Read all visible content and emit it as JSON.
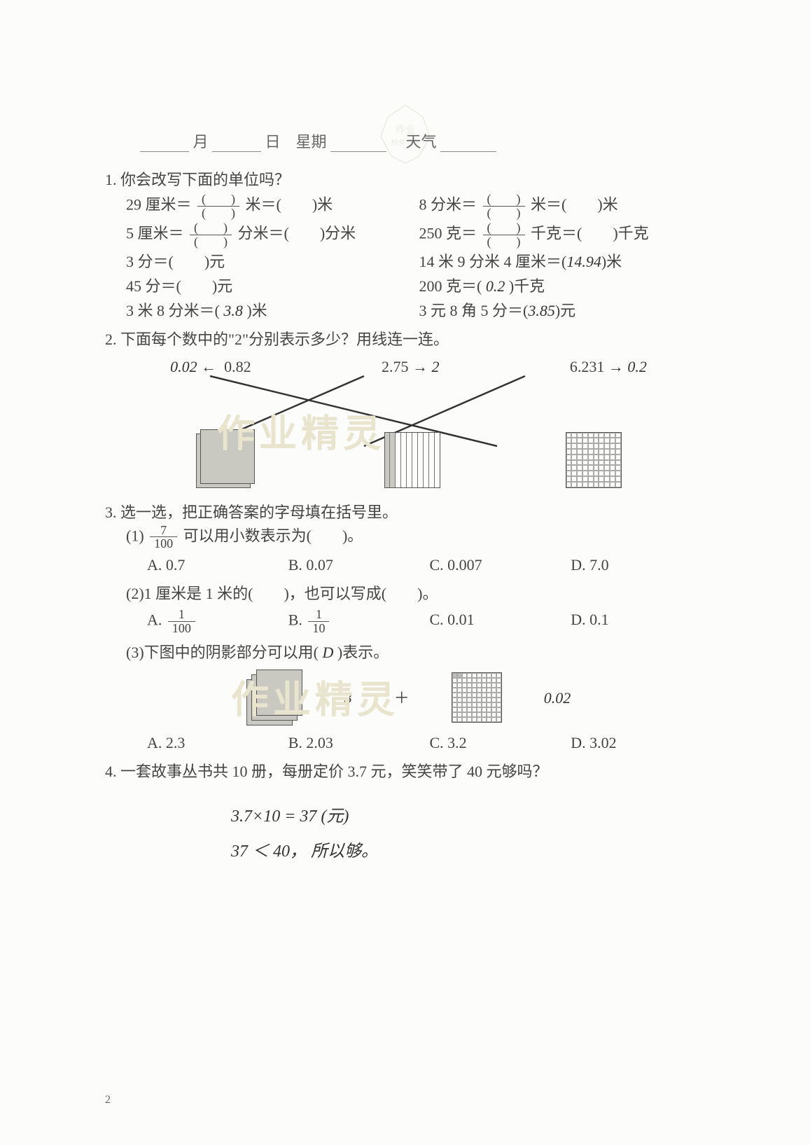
{
  "header": {
    "month_label": "月",
    "day_label": "日",
    "weekday_label": "星期",
    "weather_label": "天气"
  },
  "watermark_text": "作业精灵",
  "q1": {
    "title": "1. 你会改写下面的单位吗？",
    "rows": [
      {
        "left": "29 厘米＝",
        "unit1": "米＝(　　)米",
        "right": "8 分米＝",
        "unit2": "米＝(　　)米"
      },
      {
        "left": "5 厘米＝",
        "unit1": "分米＝(　　)分米",
        "right": "250 克＝",
        "unit2": "千克＝(　　)千克"
      }
    ],
    "lines": [
      {
        "left": "3 分＝(　　)元",
        "right_prefix": "14 米 9 分米 4 厘米＝(",
        "right_ans": "14.94",
        "right_suffix": ")米"
      },
      {
        "left": "45 分＝(　　)元",
        "right_prefix": "200 克＝( ",
        "right_ans": "0.2",
        "right_suffix": " )千克"
      },
      {
        "left_prefix": "3 米 8 分米＝( ",
        "left_ans": "3.8",
        "left_suffix": " )米",
        "right_prefix": "3 元 8 角 5 分＝(",
        "right_ans": "3.85",
        "right_suffix": ")元"
      }
    ]
  },
  "q2": {
    "title": "2. 下面每个数中的\"2\"分别表示多少？用线连一连。",
    "items": [
      {
        "note_left": "0.02  ←",
        "number": "0.82"
      },
      {
        "number": "2.75",
        "note_right": "→ 2"
      },
      {
        "number": "6.231",
        "note_right": "→ 0.2"
      }
    ],
    "line_colors": "#333333",
    "bg": "#fcfcfa"
  },
  "q3": {
    "title": "3. 选一选，把正确答案的字母填在括号里。",
    "sub1": {
      "text_prefix": "(1)",
      "frac_num": "7",
      "frac_den": "100",
      "text_suffix": "可以用小数表示为(　　)。",
      "choices": {
        "A": "A. 0.7",
        "B": "B. 0.07",
        "C": "C. 0.007",
        "D": "D. 7.0"
      }
    },
    "sub2": {
      "text": "(2)1 厘米是 1 米的(　　)，也可以写成(　　)。",
      "A_label": "A.",
      "A_num": "1",
      "A_den": "100",
      "B_label": "B.",
      "B_num": "1",
      "B_den": "10",
      "C": "C. 0.01",
      "D": "D. 0.1"
    },
    "sub3": {
      "text_prefix": "(3)下图中的阴影部分可以用( ",
      "ans": "D",
      "text_suffix": " )表示。",
      "fig_left_note": "3",
      "fig_plus": "＋",
      "fig_right_note": "0.02",
      "hundred_shaded_cells": 2,
      "choices": {
        "A": "A. 2.3",
        "B": "B. 2.03",
        "C": "C. 3.2",
        "D": "D. 3.02"
      }
    }
  },
  "q4": {
    "title": "4. 一套故事丛书共 10 册，每册定价 3.7 元，笑笑带了 40 元够吗？",
    "work_line1": "3.7×10 = 37 (元)",
    "work_line2": "37 ＜ 40，  所以够。"
  },
  "page_number": "2",
  "colors": {
    "text": "#444444",
    "handwriting": "#333333",
    "border": "#555555",
    "shade": "#c9c9c2",
    "bg": "#fcfcfa"
  }
}
